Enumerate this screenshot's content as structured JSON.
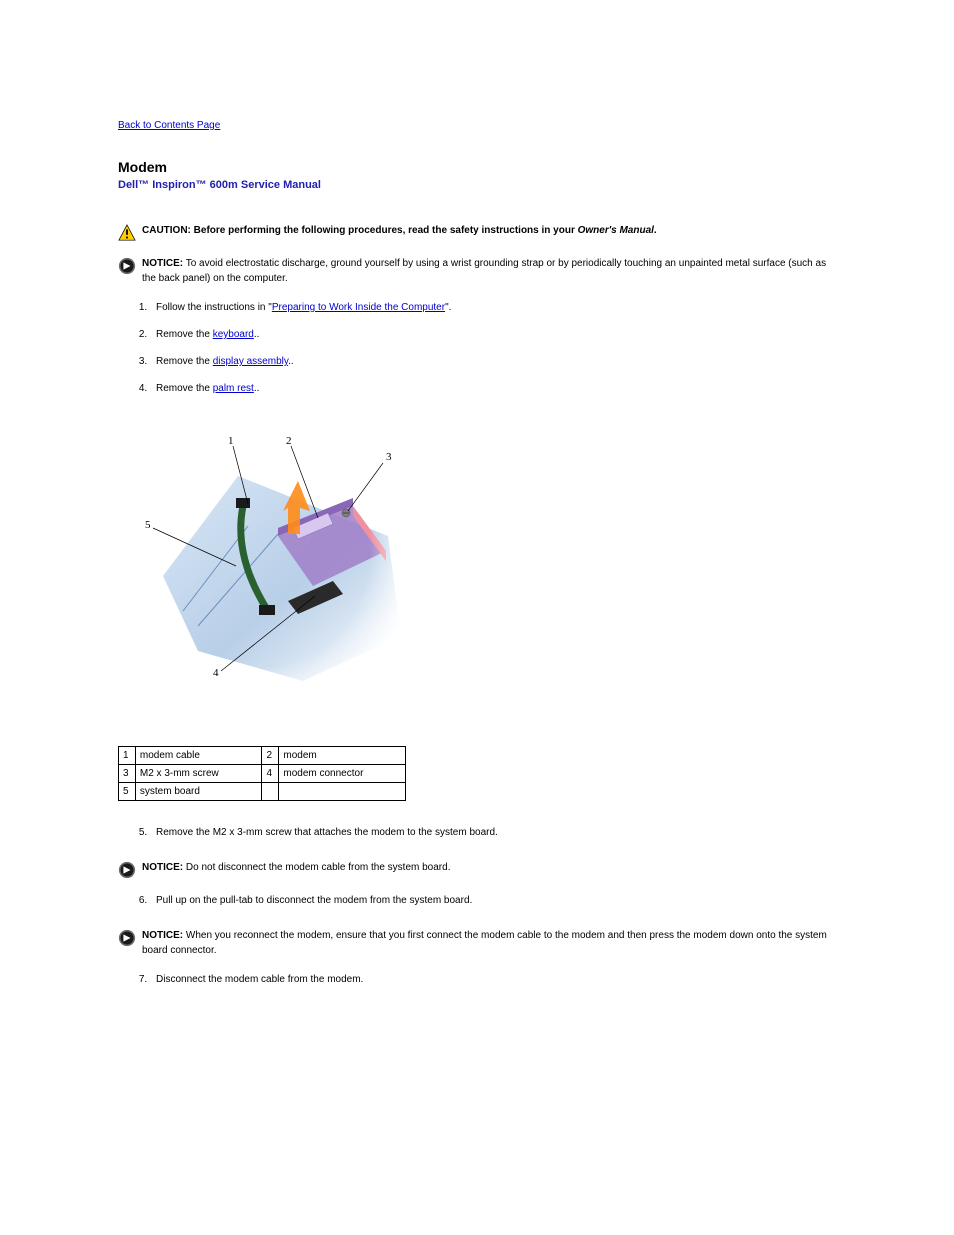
{
  "backLink": "Back to Contents Page",
  "sectionTitle": "Modem",
  "manualTitle": "Dell™ Inspiron™ 600m Service Manual",
  "caution": {
    "label": "CAUTION:",
    "text": "Before performing the following procedures, read the safety instructions in your",
    "italic": "Owner's Manual",
    "after": "."
  },
  "notice1": {
    "label": "NOTICE:",
    "text": "To avoid electrostatic discharge, ground yourself by using a wrist grounding strap or by periodically touching an unpainted metal surface (such as the back panel) on the computer."
  },
  "steps_a": [
    {
      "pre": "Follow the instructions in \"",
      "link": "Preparing to Work Inside the Computer",
      "post": "\""
    },
    {
      "pre": "Remove the ",
      "link": "keyboard",
      "post": "."
    },
    {
      "pre": "Remove the ",
      "link": "display assembly",
      "post": "."
    },
    {
      "pre": "Remove the ",
      "link": "palm rest",
      "post": "."
    }
  ],
  "diagram": {
    "callouts": [
      "1",
      "2",
      "3",
      "4",
      "5"
    ]
  },
  "partsTable": [
    [
      "1",
      "modem cable",
      "2",
      "modem"
    ],
    [
      "3",
      "M2 x 3-mm screw",
      "4",
      "modem connector"
    ],
    [
      "5",
      "system board",
      "",
      ""
    ]
  ],
  "steps_b": {
    "start": 5,
    "items": [
      "Remove the M2 x 3-mm screw that attaches the modem to the system board."
    ]
  },
  "notice2": {
    "label": "NOTICE:",
    "text": "Do not disconnect the modem cable from the system board."
  },
  "steps_c": {
    "start": 6,
    "items": [
      "Pull up on the pull-tab to disconnect the modem from the system board."
    ]
  },
  "notice3": {
    "label": "NOTICE:",
    "text": "When you reconnect the modem, ensure that you first connect the modem cable to the modem and then press the modem down onto the system board connector."
  },
  "steps_d": {
    "start": 7,
    "items": [
      "Disconnect the modem cable from the modem."
    ]
  },
  "colors": {
    "link": "#0000cc",
    "heading": "#2020b0",
    "cautionYellow": "#ffce00",
    "cautionBorder": "#000000",
    "noticeGray": "#6b6b6b",
    "noticeDark": "#1a1a1a",
    "boardBlue": "#b8cfe8",
    "boardBlueDark": "#6a8fc0",
    "modemPurple": "#a07fc8",
    "modemPink": "#f090a0",
    "screwGray": "#808080",
    "arrowOrange": "#ff8c1a",
    "cableGreen": "#2a6030"
  }
}
